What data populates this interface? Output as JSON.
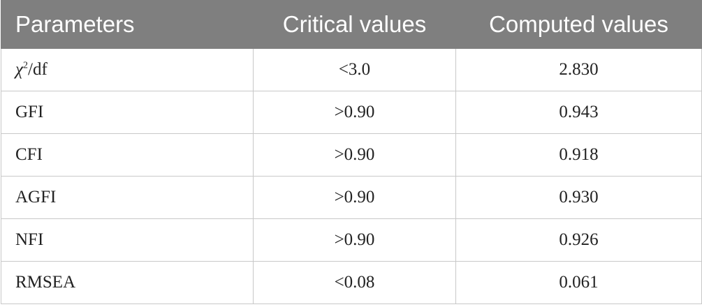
{
  "table": {
    "header": [
      "Parameters",
      "Critical values",
      "Computed values"
    ],
    "rows": [
      [
        [
          "χ",
          "2",
          "/df"
        ],
        "<3.0",
        "2.830"
      ],
      [
        "GFI",
        ">0.90",
        "0.943"
      ],
      [
        "CFI",
        ">0.90",
        "0.918"
      ],
      [
        "AGFI",
        ">0.90",
        "0.930"
      ],
      [
        "NFI",
        ">0.90",
        "0.926"
      ],
      [
        "RMSEA",
        "<0.08",
        "0.061"
      ]
    ]
  }
}
